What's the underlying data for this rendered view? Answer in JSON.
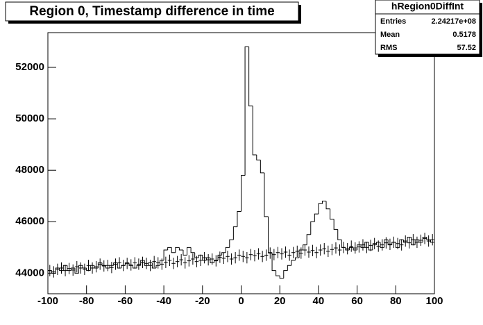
{
  "chart_data": {
    "type": "histogram",
    "title": "Region 0, Timestamp difference in time",
    "stats": {
      "name": "hRegion0DiffInt",
      "rows": [
        [
          "Entries",
          "2.24217e+08"
        ],
        [
          "Mean",
          "0.5178"
        ],
        [
          "RMS",
          "57.52"
        ]
      ]
    },
    "bins": [
      -100,
      -98,
      -96,
      -94,
      -92,
      -90,
      -88,
      -86,
      -84,
      -82,
      -80,
      -78,
      -76,
      -74,
      -72,
      -70,
      -68,
      -66,
      -64,
      -62,
      -60,
      -58,
      -56,
      -54,
      -52,
      -50,
      -48,
      -46,
      -44,
      -42,
      -40,
      -38,
      -36,
      -34,
      -32,
      -30,
      -28,
      -26,
      -24,
      -22,
      -20,
      -18,
      -16,
      -14,
      -12,
      -10,
      -8,
      -6,
      -4,
      -2,
      0,
      2,
      4,
      6,
      8,
      10,
      12,
      14,
      16,
      18,
      20,
      22,
      24,
      26,
      28,
      30,
      32,
      34,
      36,
      38,
      40,
      42,
      44,
      46,
      48,
      50,
      52,
      54,
      56,
      58,
      60,
      62,
      64,
      66,
      68,
      70,
      72,
      74,
      76,
      78,
      80,
      82,
      84,
      86,
      88,
      90,
      92,
      94,
      96,
      98,
      100
    ],
    "counts": [
      44100,
      44000,
      44200,
      44100,
      44300,
      44100,
      44200,
      44000,
      44300,
      44200,
      44100,
      44300,
      44200,
      44400,
      44300,
      44200,
      44300,
      44400,
      44200,
      44300,
      44400,
      44300,
      44200,
      44300,
      44500,
      44300,
      44400,
      44200,
      44300,
      44500,
      44900,
      45000,
      44800,
      45000,
      44900,
      44700,
      45000,
      44800,
      44600,
      44700,
      44500,
      44600,
      44400,
      44500,
      44700,
      44800,
      45000,
      45300,
      45800,
      46400,
      47800,
      52800,
      50500,
      48600,
      48400,
      47900,
      46200,
      44800,
      44100,
      43900,
      43800,
      44100,
      44300,
      44500,
      44600,
      44900,
      45100,
      45500,
      46000,
      46300,
      46700,
      46800,
      46500,
      46100,
      45700,
      45300,
      45000,
      44900,
      45000,
      44900,
      45100,
      45000,
      45200,
      44900,
      45100,
      45200,
      45000,
      45300,
      45100,
      45200,
      45000,
      45300,
      45200,
      45400,
      45100,
      45300,
      45200,
      45400,
      45300,
      45200
    ],
    "points": [
      44100,
      44050,
      44150,
      44200,
      44100,
      44180,
      44120,
      44250,
      44200,
      44150,
      44300,
      44200,
      44250,
      44350,
      44280,
      44300,
      44220,
      44350,
      44400,
      44300,
      44380,
      44320,
      44400,
      44350,
      44420,
      44380,
      44300,
      44450,
      44400,
      44350,
      44420,
      44500,
      44380,
      44450,
      44520,
      44400,
      44480,
      44550,
      44450,
      44500,
      44600,
      44520,
      44550,
      44480,
      44620,
      44580,
      44650,
      44550,
      44600,
      44700,
      44650,
      44600,
      44720,
      44680,
      44750,
      44650,
      44700,
      44780,
      44720,
      44800,
      44750,
      44820,
      44700,
      44800,
      44850,
      44780,
      44900,
      44820,
      44880,
      44800,
      44900,
      44950,
      44850,
      44920,
      44980,
      44900,
      45000,
      44950,
      45050,
      44980,
      45020,
      45100,
      45000,
      45080,
      45150,
      45050,
      45100,
      45180,
      45120,
      45200,
      45150,
      45100,
      45250,
      45180,
      45300,
      45200,
      45280,
      45350,
      45250,
      45300
    ],
    "point_error": 220,
    "color": "#000000",
    "xlim": [
      -100,
      100
    ],
    "xticks": [
      -100,
      -80,
      -60,
      -40,
      -20,
      0,
      20,
      40,
      60,
      80,
      100
    ],
    "ylim": [
      43200,
      53350
    ],
    "yticks": [
      44000,
      46000,
      48000,
      50000,
      52000
    ]
  }
}
